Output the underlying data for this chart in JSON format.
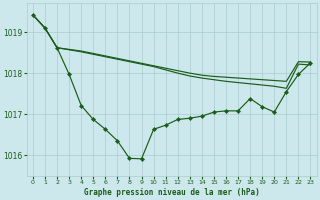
{
  "title": "Graphe pression niveau de la mer (hPa)",
  "bg_color": "#cce8ec",
  "grid_color": "#aacccc",
  "line_color": "#1a5c1a",
  "x_min": -0.5,
  "x_max": 23.5,
  "y_min": 1015.5,
  "y_max": 1019.7,
  "y_ticks": [
    1016,
    1017,
    1018,
    1019
  ],
  "x_ticks": [
    0,
    1,
    2,
    3,
    4,
    5,
    6,
    7,
    8,
    9,
    10,
    11,
    12,
    13,
    14,
    15,
    16,
    17,
    18,
    19,
    20,
    21,
    22,
    23
  ],
  "s_line1": [
    1019.42,
    1019.1,
    1018.62,
    1018.58,
    1018.54,
    1018.48,
    1018.42,
    1018.36,
    1018.3,
    1018.24,
    1018.18,
    1018.12,
    1018.06,
    1018.0,
    1017.95,
    1017.92,
    1017.9,
    1017.88,
    1017.86,
    1017.84,
    1017.82,
    1017.8,
    1018.28,
    1018.27
  ],
  "s_line2": [
    1019.42,
    1019.1,
    1018.62,
    1018.57,
    1018.52,
    1018.46,
    1018.4,
    1018.34,
    1018.28,
    1018.22,
    1018.16,
    1018.08,
    1018.0,
    1017.93,
    1017.88,
    1017.84,
    1017.8,
    1017.77,
    1017.74,
    1017.71,
    1017.68,
    1017.63,
    1018.22,
    1018.2
  ],
  "s_detail": [
    1019.42,
    1019.1,
    1018.62,
    1017.97,
    1017.21,
    1016.87,
    1016.63,
    1016.35,
    1015.92,
    1015.91,
    1016.63,
    1016.73,
    1016.87,
    1016.9,
    1016.95,
    1017.05,
    1017.08,
    1017.08,
    1017.38,
    1017.18,
    1017.05,
    1017.55,
    1017.97,
    1018.25
  ]
}
